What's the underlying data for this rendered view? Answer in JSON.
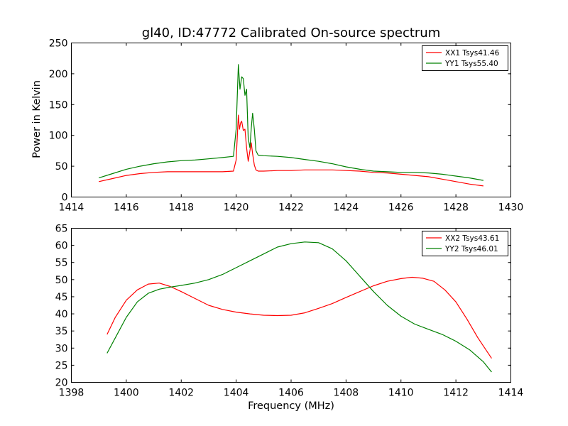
{
  "chart_data": [
    {
      "type": "line",
      "title": "gl40, ID:47772 Calibrated On-source spectrum",
      "xlabel": "",
      "ylabel": "Power in Kelvin",
      "xlim": [
        1414,
        1430
      ],
      "ylim": [
        0,
        250
      ],
      "xticks": [
        1414,
        1416,
        1418,
        1420,
        1422,
        1424,
        1426,
        1428,
        1430
      ],
      "yticks": [
        0,
        50,
        100,
        150,
        200,
        250
      ],
      "grid": false,
      "legend_position": "top-right",
      "series": [
        {
          "name": "XX1 Tsys41.46",
          "color": "#ff0000",
          "x": [
            1415.0,
            1415.5,
            1416.0,
            1416.5,
            1417.0,
            1417.5,
            1418.0,
            1418.5,
            1419.0,
            1419.5,
            1419.9,
            1420.0,
            1420.08,
            1420.12,
            1420.16,
            1420.2,
            1420.26,
            1420.32,
            1420.38,
            1420.44,
            1420.5,
            1420.55,
            1420.6,
            1420.66,
            1420.72,
            1420.8,
            1421.0,
            1421.5,
            1422.0,
            1422.5,
            1423.0,
            1423.5,
            1424.0,
            1424.5,
            1425.0,
            1425.5,
            1426.0,
            1426.5,
            1427.0,
            1427.5,
            1428.0,
            1428.5,
            1429.0
          ],
          "values": [
            25,
            30,
            35,
            38,
            40,
            41,
            41,
            41,
            41,
            41,
            42,
            60,
            133,
            110,
            120,
            123,
            108,
            110,
            80,
            58,
            75,
            88,
            70,
            52,
            44,
            42,
            42,
            43,
            43,
            44,
            44,
            44,
            43,
            42,
            40,
            39,
            37,
            35,
            33,
            29,
            25,
            21,
            18
          ]
        },
        {
          "name": "YY1 Tsys55.40",
          "color": "#008000",
          "x": [
            1415.0,
            1415.5,
            1416.0,
            1416.5,
            1417.0,
            1417.5,
            1418.0,
            1418.5,
            1419.0,
            1419.5,
            1419.9,
            1420.0,
            1420.08,
            1420.14,
            1420.2,
            1420.26,
            1420.32,
            1420.38,
            1420.44,
            1420.5,
            1420.55,
            1420.6,
            1420.66,
            1420.72,
            1420.8,
            1421.0,
            1421.5,
            1422.0,
            1422.5,
            1423.0,
            1423.5,
            1424.0,
            1424.5,
            1425.0,
            1425.5,
            1426.0,
            1426.5,
            1427.0,
            1427.5,
            1428.0,
            1428.5,
            1429.0
          ],
          "values": [
            31,
            38,
            45,
            50,
            54,
            57,
            59,
            60,
            62,
            64,
            66,
            110,
            215,
            175,
            195,
            192,
            165,
            175,
            95,
            80,
            112,
            136,
            110,
            75,
            68,
            67,
            66,
            64,
            61,
            58,
            54,
            49,
            45,
            42,
            41,
            40,
            40,
            39,
            37,
            34,
            31,
            27
          ]
        }
      ]
    },
    {
      "type": "line",
      "title": "",
      "xlabel": "Frequency (MHz)",
      "ylabel": "",
      "xlim": [
        1398,
        1414
      ],
      "ylim": [
        20,
        65
      ],
      "xticks": [
        1398,
        1400,
        1402,
        1404,
        1406,
        1408,
        1410,
        1412,
        1414
      ],
      "yticks": [
        20,
        25,
        30,
        35,
        40,
        45,
        50,
        55,
        60,
        65
      ],
      "grid": false,
      "legend_position": "top-right",
      "series": [
        {
          "name": "XX2 Tsys43.61",
          "color": "#ff0000",
          "x": [
            1399.3,
            1399.6,
            1400.0,
            1400.4,
            1400.8,
            1401.2,
            1401.6,
            1402.0,
            1402.5,
            1403.0,
            1403.5,
            1404.0,
            1404.5,
            1405.0,
            1405.5,
            1406.0,
            1406.5,
            1407.0,
            1407.5,
            1408.0,
            1408.5,
            1409.0,
            1409.5,
            1410.0,
            1410.4,
            1410.8,
            1411.2,
            1411.6,
            1412.0,
            1412.4,
            1412.8,
            1413.3
          ],
          "values": [
            34,
            39,
            44,
            47,
            48.7,
            49,
            48,
            46.5,
            44.5,
            42.5,
            41.3,
            40.5,
            40,
            39.6,
            39.5,
            39.6,
            40.3,
            41.6,
            43,
            44.8,
            46.5,
            48.2,
            49.5,
            50.3,
            50.7,
            50.4,
            49.5,
            47,
            43.5,
            38.5,
            33,
            27
          ]
        },
        {
          "name": "YY2 Tsys46.01",
          "color": "#008000",
          "x": [
            1399.3,
            1399.6,
            1400.0,
            1400.4,
            1400.8,
            1401.2,
            1401.6,
            1402.0,
            1402.5,
            1403.0,
            1403.5,
            1404.0,
            1404.5,
            1405.0,
            1405.5,
            1406.0,
            1406.5,
            1407.0,
            1407.5,
            1408.0,
            1408.5,
            1409.0,
            1409.5,
            1410.0,
            1410.5,
            1411.0,
            1411.5,
            1412.0,
            1412.5,
            1413.0,
            1413.3
          ],
          "values": [
            28.5,
            33,
            39,
            43.5,
            46,
            47.2,
            47.8,
            48.3,
            49,
            50,
            51.5,
            53.5,
            55.5,
            57.5,
            59.5,
            60.5,
            61,
            60.8,
            59,
            55.5,
            51,
            46.5,
            42.5,
            39.3,
            37,
            35.5,
            34,
            32,
            29.5,
            26,
            23
          ]
        }
      ]
    }
  ]
}
